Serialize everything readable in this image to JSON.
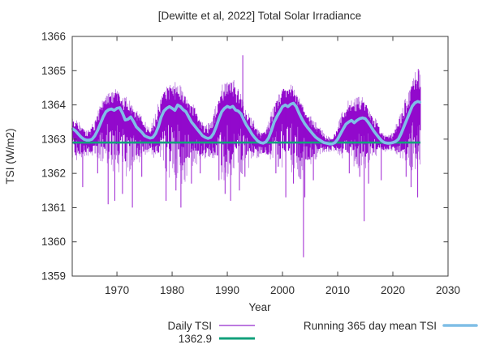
{
  "colors": {
    "daily": "#9209CC",
    "daily_light": "#A64FD6",
    "mean": "#7FBEE6",
    "baseline": "#12A17B",
    "text": "#2d2d2d",
    "frame": "#3f3f3f",
    "background": "#ffffff"
  },
  "legend": {
    "daily": "Daily TSI",
    "baseline": "1362.9",
    "mean": "Running 365 day mean TSI"
  },
  "chart_data": {
    "type": "line",
    "title": "[Dewitte et al, 2022] Total Solar Irradiance",
    "xlabel": "Year",
    "ylabel": "TSI (W/m2)",
    "xlim": [
      1961.9,
      2030
    ],
    "ylim": [
      1359,
      1366
    ],
    "x_ticks": [
      1970,
      1980,
      1990,
      2000,
      2010,
      2020,
      2030
    ],
    "y_ticks": [
      1359,
      1360,
      1361,
      1362,
      1363,
      1364,
      1365,
      1366
    ],
    "grid": false,
    "legend_position": "below",
    "series": [
      {
        "name": "Daily TSI",
        "render": "noisy-envelope",
        "color_key": "daily",
        "x_start": 1961.95,
        "x_end": 2025.0,
        "noise_seed": 1987,
        "envelope": [
          [
            1962,
            1363.6,
            1362.3
          ],
          [
            1963,
            1363.5,
            1362.4
          ],
          [
            1964,
            1363.35,
            1362.5
          ],
          [
            1965,
            1363.3,
            1362.5
          ],
          [
            1966,
            1363.55,
            1362.45
          ],
          [
            1967,
            1364.0,
            1362.4
          ],
          [
            1968,
            1364.3,
            1362.3
          ],
          [
            1969,
            1364.4,
            1362.2
          ],
          [
            1970,
            1364.45,
            1362.0
          ],
          [
            1971,
            1364.2,
            1362.2
          ],
          [
            1972,
            1364.2,
            1361.9
          ],
          [
            1973,
            1363.9,
            1362.3
          ],
          [
            1974,
            1363.8,
            1362.3
          ],
          [
            1975,
            1363.5,
            1362.5
          ],
          [
            1976,
            1363.4,
            1362.6
          ],
          [
            1977,
            1363.8,
            1362.4
          ],
          [
            1978,
            1364.3,
            1362.3
          ],
          [
            1979,
            1364.6,
            1362.0
          ],
          [
            1980,
            1364.6,
            1361.9
          ],
          [
            1981,
            1364.65,
            1361.9
          ],
          [
            1982,
            1364.5,
            1361.7
          ],
          [
            1983,
            1364.1,
            1361.9
          ],
          [
            1984,
            1364.0,
            1362.1
          ],
          [
            1985,
            1363.6,
            1362.4
          ],
          [
            1986,
            1363.4,
            1362.45
          ],
          [
            1987,
            1363.5,
            1362.5
          ],
          [
            1988,
            1364.0,
            1362.2
          ],
          [
            1989,
            1364.55,
            1361.8
          ],
          [
            1990,
            1364.7,
            1361.9
          ],
          [
            1991,
            1364.8,
            1361.8
          ],
          [
            1992,
            1364.5,
            1361.9
          ],
          [
            1993,
            1364.0,
            1362.1
          ],
          [
            1994,
            1363.7,
            1362.2
          ],
          [
            1995,
            1363.5,
            1362.4
          ],
          [
            1996,
            1363.2,
            1362.5
          ],
          [
            1997,
            1363.3,
            1362.5
          ],
          [
            1998,
            1363.9,
            1362.3
          ],
          [
            1999,
            1364.2,
            1362.2
          ],
          [
            2000,
            1364.6,
            1362.0
          ],
          [
            2001,
            1364.6,
            1362.0
          ],
          [
            2002,
            1364.55,
            1362.1
          ],
          [
            2003,
            1364.2,
            1361.8
          ],
          [
            2004,
            1363.9,
            1362.1
          ],
          [
            2005,
            1363.7,
            1362.2
          ],
          [
            2006,
            1363.5,
            1362.4
          ],
          [
            2007,
            1363.3,
            1362.6
          ],
          [
            2008,
            1363.1,
            1362.6
          ],
          [
            2009,
            1363.0,
            1362.65
          ],
          [
            2010,
            1363.4,
            1362.6
          ],
          [
            2011,
            1363.9,
            1362.4
          ],
          [
            2012,
            1364.15,
            1362.3
          ],
          [
            2013,
            1364.15,
            1362.25
          ],
          [
            2014,
            1364.25,
            1362.1
          ],
          [
            2015,
            1364.15,
            1362.2
          ],
          [
            2016,
            1363.8,
            1362.4
          ],
          [
            2017,
            1363.6,
            1362.45
          ],
          [
            2018,
            1363.2,
            1362.6
          ],
          [
            2019,
            1363.1,
            1362.65
          ],
          [
            2020,
            1363.2,
            1362.65
          ],
          [
            2021,
            1363.6,
            1362.5
          ],
          [
            2022,
            1364.1,
            1362.3
          ],
          [
            2023,
            1364.4,
            1362.1
          ],
          [
            2024,
            1364.95,
            1362.0
          ],
          [
            2025,
            1365.0,
            1362.3
          ]
        ],
        "spikes_down": [
          [
            1963.8,
            1361.6
          ],
          [
            1966.5,
            1362.0
          ],
          [
            1968.4,
            1361.1
          ],
          [
            1969.6,
            1361.2
          ],
          [
            1971.0,
            1361.4
          ],
          [
            1972.8,
            1361.0
          ],
          [
            1974.5,
            1361.9
          ],
          [
            1978.9,
            1361.2
          ],
          [
            1980.7,
            1361.5
          ],
          [
            1981.6,
            1361.0
          ],
          [
            1983.5,
            1361.7
          ],
          [
            1985.1,
            1362.0
          ],
          [
            1988.5,
            1361.8
          ],
          [
            1989.6,
            1361.4
          ],
          [
            1990.6,
            1361.2
          ],
          [
            1992.2,
            1361.5
          ],
          [
            1993.2,
            1361.9
          ],
          [
            1998.8,
            1362.0
          ],
          [
            2000.6,
            1361.3
          ],
          [
            2002.0,
            1361.7
          ],
          [
            2003.8,
            1359.55
          ],
          [
            2004.05,
            1361.3
          ],
          [
            2005.6,
            1361.8
          ],
          [
            2012.1,
            1362.0
          ],
          [
            2014.0,
            1361.9
          ],
          [
            2014.8,
            1360.6
          ],
          [
            2015.6,
            1361.7
          ],
          [
            2017.9,
            1361.8
          ],
          [
            2022.4,
            1361.9
          ],
          [
            2023.3,
            1361.6
          ],
          [
            2024.5,
            1361.3
          ]
        ],
        "spikes_up": [
          [
            1992.8,
            1365.45
          ],
          [
            2024.6,
            1365.05
          ]
        ]
      },
      {
        "name": "1362.9",
        "render": "hline",
        "color_key": "baseline",
        "value": 1362.9,
        "x_start": 1961.95,
        "x_end": 2025.0
      },
      {
        "name": "Running 365 day mean TSI",
        "render": "line",
        "color_key": "mean",
        "points": [
          [
            1962,
            1363.3
          ],
          [
            1962.5,
            1363.24
          ],
          [
            1963,
            1363.15
          ],
          [
            1963.5,
            1363.06
          ],
          [
            1964,
            1363.0
          ],
          [
            1964.5,
            1362.97
          ],
          [
            1965,
            1362.97
          ],
          [
            1965.5,
            1363.0
          ],
          [
            1966,
            1363.1
          ],
          [
            1966.5,
            1363.26
          ],
          [
            1967,
            1363.45
          ],
          [
            1967.5,
            1363.65
          ],
          [
            1968,
            1363.8
          ],
          [
            1968.5,
            1363.86
          ],
          [
            1969,
            1363.88
          ],
          [
            1969.5,
            1363.84
          ],
          [
            1970,
            1363.9
          ],
          [
            1970.5,
            1363.92
          ],
          [
            1971,
            1363.76
          ],
          [
            1971.5,
            1363.56
          ],
          [
            1972,
            1363.58
          ],
          [
            1972.5,
            1363.65
          ],
          [
            1973,
            1363.52
          ],
          [
            1973.5,
            1363.36
          ],
          [
            1974,
            1363.28
          ],
          [
            1974.5,
            1363.2
          ],
          [
            1975,
            1363.1
          ],
          [
            1975.5,
            1363.06
          ],
          [
            1976,
            1363.03
          ],
          [
            1976.5,
            1363.05
          ],
          [
            1977,
            1363.16
          ],
          [
            1977.5,
            1363.36
          ],
          [
            1978,
            1363.64
          ],
          [
            1978.5,
            1363.82
          ],
          [
            1979,
            1363.9
          ],
          [
            1979.5,
            1363.95
          ],
          [
            1980,
            1363.9
          ],
          [
            1980.5,
            1363.84
          ],
          [
            1981,
            1364.0
          ],
          [
            1981.5,
            1363.95
          ],
          [
            1982,
            1363.86
          ],
          [
            1982.5,
            1363.8
          ],
          [
            1983,
            1363.65
          ],
          [
            1983.5,
            1363.5
          ],
          [
            1984,
            1363.4
          ],
          [
            1984.5,
            1363.3
          ],
          [
            1985,
            1363.2
          ],
          [
            1985.5,
            1363.1
          ],
          [
            1986,
            1363.05
          ],
          [
            1986.5,
            1363.02
          ],
          [
            1987,
            1363.05
          ],
          [
            1987.5,
            1363.16
          ],
          [
            1988,
            1363.36
          ],
          [
            1988.5,
            1363.6
          ],
          [
            1989,
            1363.8
          ],
          [
            1989.5,
            1363.9
          ],
          [
            1990,
            1363.96
          ],
          [
            1990.5,
            1363.92
          ],
          [
            1991,
            1363.96
          ],
          [
            1991.5,
            1363.85
          ],
          [
            1992,
            1363.82
          ],
          [
            1992.5,
            1363.74
          ],
          [
            1993,
            1363.56
          ],
          [
            1993.5,
            1363.4
          ],
          [
            1994,
            1363.28
          ],
          [
            1994.5,
            1363.14
          ],
          [
            1995,
            1363.04
          ],
          [
            1995.5,
            1362.95
          ],
          [
            1996,
            1362.9
          ],
          [
            1996.5,
            1362.88
          ],
          [
            1997,
            1362.92
          ],
          [
            1997.5,
            1363.04
          ],
          [
            1998,
            1363.25
          ],
          [
            1998.5,
            1363.5
          ],
          [
            1999,
            1363.66
          ],
          [
            1999.5,
            1363.8
          ],
          [
            2000,
            1363.95
          ],
          [
            2000.5,
            1364.0
          ],
          [
            2001,
            1363.95
          ],
          [
            2001.5,
            1364.02
          ],
          [
            2002,
            1364.05
          ],
          [
            2002.5,
            1363.95
          ],
          [
            2003,
            1363.76
          ],
          [
            2003.5,
            1363.6
          ],
          [
            2004,
            1363.46
          ],
          [
            2004.5,
            1363.35
          ],
          [
            2005,
            1363.25
          ],
          [
            2005.5,
            1363.15
          ],
          [
            2006,
            1363.06
          ],
          [
            2006.5,
            1363.0
          ],
          [
            2007,
            1362.95
          ],
          [
            2007.5,
            1362.9
          ],
          [
            2008,
            1362.88
          ],
          [
            2008.5,
            1362.86
          ],
          [
            2009,
            1362.86
          ],
          [
            2009.5,
            1362.9
          ],
          [
            2010,
            1363.0
          ],
          [
            2010.5,
            1363.15
          ],
          [
            2011,
            1363.3
          ],
          [
            2011.5,
            1363.44
          ],
          [
            2012,
            1363.5
          ],
          [
            2012.5,
            1363.55
          ],
          [
            2013,
            1363.48
          ],
          [
            2013.5,
            1363.55
          ],
          [
            2014,
            1363.6
          ],
          [
            2014.5,
            1363.62
          ],
          [
            2015,
            1363.6
          ],
          [
            2015.5,
            1363.5
          ],
          [
            2016,
            1363.38
          ],
          [
            2016.5,
            1363.25
          ],
          [
            2017,
            1363.14
          ],
          [
            2017.5,
            1363.04
          ],
          [
            2018,
            1362.95
          ],
          [
            2018.5,
            1362.9
          ],
          [
            2019,
            1362.88
          ],
          [
            2019.5,
            1362.88
          ],
          [
            2020,
            1362.9
          ],
          [
            2020.5,
            1362.93
          ],
          [
            2021,
            1363.0
          ],
          [
            2021.5,
            1363.16
          ],
          [
            2022,
            1363.36
          ],
          [
            2022.5,
            1363.56
          ],
          [
            2023,
            1363.76
          ],
          [
            2023.5,
            1363.96
          ],
          [
            2024,
            1364.06
          ],
          [
            2024.5,
            1364.1
          ],
          [
            2024.9,
            1364.08
          ]
        ]
      }
    ]
  }
}
